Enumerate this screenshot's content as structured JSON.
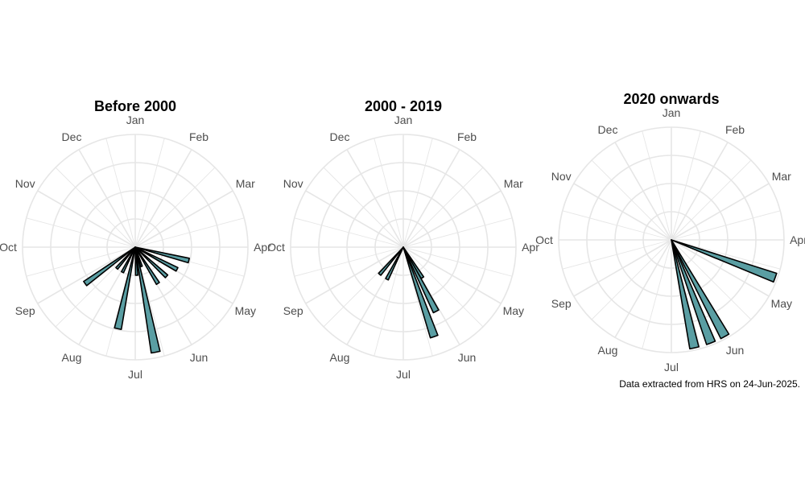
{
  "colors": {
    "bar_fill": "#5a9ea3",
    "bar_stroke": "#000000",
    "grid": "#e6e6e6",
    "month_label": "#4d4d4d",
    "title": "#000000"
  },
  "months": [
    "Jan",
    "Feb",
    "Mar",
    "Apr",
    "May",
    "Jun",
    "Jul",
    "Aug",
    "Sep",
    "Oct",
    "Nov",
    "Dec"
  ],
  "chart_data": [
    {
      "type": "bar",
      "coord": "polar",
      "title": "Before 2000",
      "legend": "none",
      "grid": true,
      "bins": [
        {
          "month": "Apr",
          "day": 15,
          "value": 0.49
        },
        {
          "month": "Apr",
          "day": 29,
          "value": 0.42
        },
        {
          "month": "May",
          "day": 14,
          "value": 0.38
        },
        {
          "month": "May",
          "day": 29,
          "value": 0.38
        },
        {
          "month": "Jun",
          "day": 13,
          "value": 0.18
        },
        {
          "month": "Jun",
          "day": 20,
          "value": 0.95
        },
        {
          "month": "Jun",
          "day": 28,
          "value": 0.25
        },
        {
          "month": "Jul",
          "day": 13,
          "value": 0.74
        },
        {
          "month": "Jul",
          "day": 28,
          "value": 0.25
        },
        {
          "month": "Aug",
          "day": 12,
          "value": 0.25
        },
        {
          "month": "Aug",
          "day": 25,
          "value": 0.55
        }
      ]
    },
    {
      "type": "bar",
      "coord": "polar",
      "title": "2000 - 2019",
      "legend": "none",
      "grid": true,
      "bins": [
        {
          "month": "May",
          "day": 29,
          "value": 0.32
        },
        {
          "month": "Jun",
          "day": 4,
          "value": 0.64
        },
        {
          "month": "Jun",
          "day": 12,
          "value": 0.84
        },
        {
          "month": "Jul",
          "day": 28,
          "value": 0.32
        },
        {
          "month": "Aug",
          "day": 12,
          "value": 0.32
        }
      ]
    },
    {
      "type": "bar",
      "coord": "polar",
      "title": "2020 onwards",
      "legend": "none",
      "grid": true,
      "bins": [
        {
          "month": "Apr",
          "day": 21,
          "value": 0.98
        },
        {
          "month": "Jun",
          "day": 2,
          "value": 0.98
        },
        {
          "month": "Jun",
          "day": 10,
          "value": 0.98
        },
        {
          "month": "Jun",
          "day": 19,
          "value": 0.98
        }
      ]
    }
  ],
  "caption": "Data extracted from HRS on 24-Jun-2025."
}
